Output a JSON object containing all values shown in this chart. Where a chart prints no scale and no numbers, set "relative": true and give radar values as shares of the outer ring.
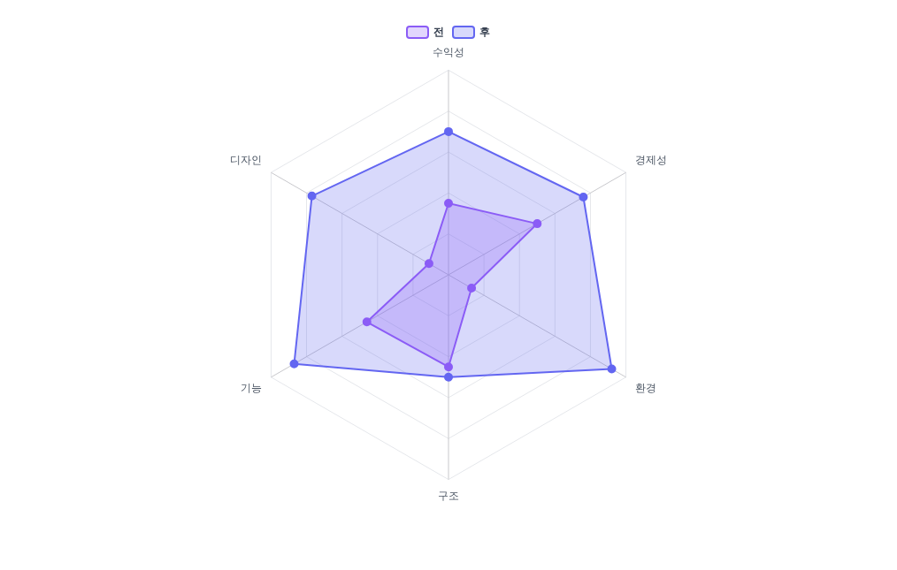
{
  "chart_data": {
    "type": "radar",
    "relative": true,
    "grid": true,
    "legend": "top",
    "marker": "circle",
    "categories": [
      "수익성",
      "경제성",
      "환경",
      "구조",
      "기능",
      "디자인"
    ],
    "series": [
      {
        "name": "전",
        "color": "#8b5cf6",
        "values": [
          0.35,
          0.5,
          0.13,
          0.45,
          0.46,
          0.11
        ]
      },
      {
        "name": "후",
        "color": "#6366f1",
        "values": [
          0.7,
          0.76,
          0.92,
          0.5,
          0.87,
          0.77
        ]
      }
    ]
  }
}
